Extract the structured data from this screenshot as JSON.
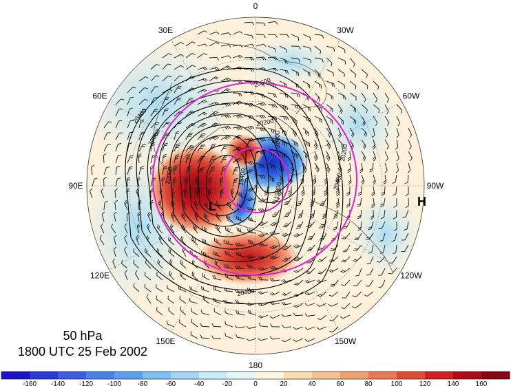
{
  "map": {
    "projection": "north polar stereographic",
    "longitude_labels": [
      {
        "name": "0",
        "lon": 0
      },
      {
        "name": "30W",
        "lon": -30
      },
      {
        "name": "60W",
        "lon": -60
      },
      {
        "name": "90W",
        "lon": -90
      },
      {
        "name": "120W",
        "lon": -120
      },
      {
        "name": "150W",
        "lon": -150
      },
      {
        "name": "180",
        "lon": 180
      },
      {
        "name": "150E",
        "lon": 150
      },
      {
        "name": "120E",
        "lon": 120
      },
      {
        "name": "90E",
        "lon": 90
      },
      {
        "name": "60E",
        "lon": 60
      },
      {
        "name": "30E",
        "lon": 30
      }
    ],
    "contour_labels": [
      "20200",
      "20400",
      "20000",
      "19400",
      "20600",
      "19800",
      "20200",
      "20400",
      "20400",
      "20000",
      "20600"
    ],
    "low_marker": "L",
    "high_marker": "H",
    "colors": {
      "ocean_neutral": "#fdf1dc",
      "light_blue": "#c8ecf7",
      "mid_blue": "#7cc3f0",
      "strong_blue": "#2060e0",
      "deep_blue": "#1a2fc0",
      "light_red": "#f7c29a",
      "mid_red": "#ef6a4a",
      "strong_red": "#d62020",
      "deep_red": "#9c0a14",
      "circle": "#e020d8"
    }
  },
  "caption": {
    "level": "50 hPa",
    "time": "1800 UTC 25 Feb 2002"
  },
  "colorbar": {
    "ticks": [
      "-160",
      "-140",
      "-120",
      "-100",
      "-80",
      "-60",
      "-40",
      "-20",
      "0",
      "20",
      "40",
      "60",
      "80",
      "100",
      "120",
      "140",
      "160"
    ],
    "colors": [
      "#1a13c8",
      "#2a3ad6",
      "#3a5ee0",
      "#4a80e8",
      "#5aa0ee",
      "#7cbff2",
      "#a3d6f6",
      "#c8ecf9",
      "#e4f6f6",
      "#fdf6e0",
      "#f9dcb0",
      "#f6c090",
      "#f1a070",
      "#ea7852",
      "#e04a38",
      "#d02024",
      "#b00c18",
      "#8a0610"
    ]
  }
}
